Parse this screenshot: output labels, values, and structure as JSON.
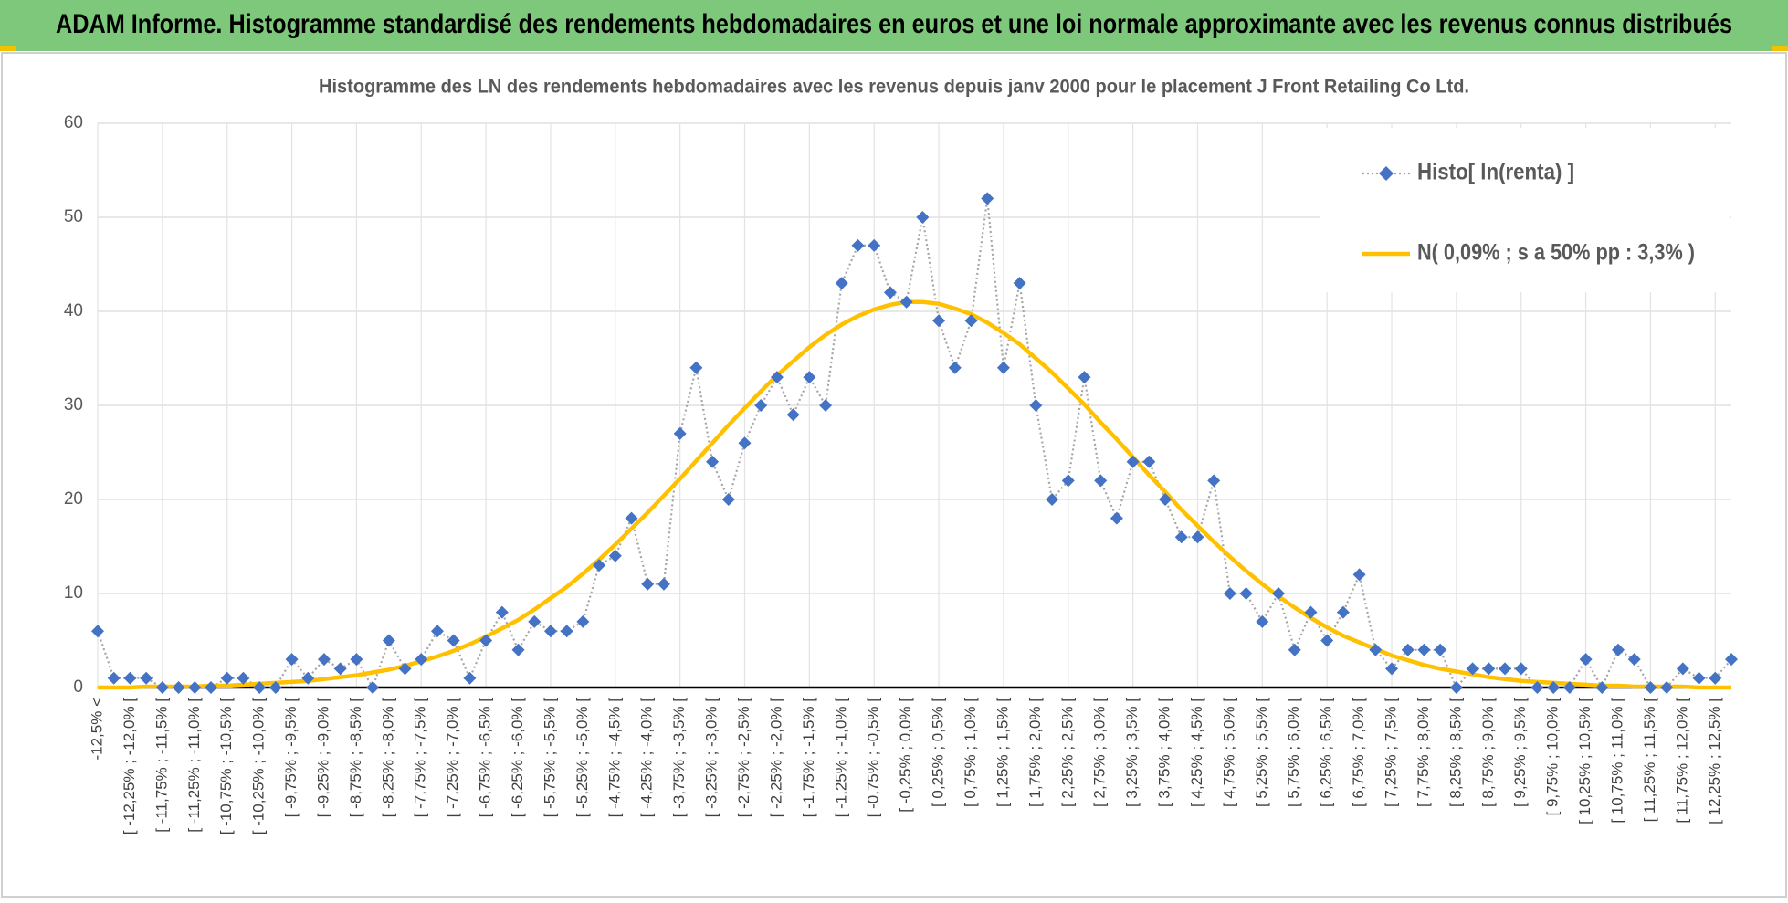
{
  "page_title": "ADAM Informe. Histogramme standardisé des rendements hebdomadaires en euros et une loi normale approximante avec les revenus connus distribués",
  "chart_data": {
    "type": "line",
    "title": "Histogramme des LN des rendements hebdomadaires avec les revenus depuis janv 2000 pour le placement J Front Retailing Co Ltd.",
    "categories": [
      "-12,5% <",
      null,
      "[ -12,25% ; -12,0% [",
      null,
      "[ -11,75% ; -11,5% [",
      null,
      "[ -11,25% ; -11,0% [",
      null,
      "[ -10,75% ; -10,5% [",
      null,
      "[ -10,25% ; -10,0% [",
      null,
      "[ -9,75% ; -9,5% [",
      null,
      "[ -9,25% ; -9,0% [",
      null,
      "[ -8,75% ; -8,5% [",
      null,
      "[ -8,25% ; -8,0% [",
      null,
      "[ -7,75% ; -7,5% [",
      null,
      "[ -7,25% ; -7,0% [",
      null,
      "[ -6,75% ; -6,5% [",
      null,
      "[ -6,25% ; -6,0% [",
      null,
      "[ -5,75% ; -5,5% [",
      null,
      "[ -5,25% ; -5,0% [",
      null,
      "[ -4,75% ; -4,5% [",
      null,
      "[ -4,25% ; -4,0% [",
      null,
      "[ -3,75% ; -3,5% [",
      null,
      "[ -3,25% ; -3,0% [",
      null,
      "[ -2,75% ; -2,5% [",
      null,
      "[ -2,25% ; -2,0% [",
      null,
      "[ -1,75% ; -1,5% [",
      null,
      "[ -1,25% ; -1,0% [",
      null,
      "[ -0,75% ; -0,5% [",
      null,
      "[ -0,25% ; 0,0% [",
      null,
      "[ 0,25% ; 0,5% [",
      null,
      "[ 0,75% ; 1,0% [",
      null,
      "[ 1,25% ; 1,5% [",
      null,
      "[ 1,75% ; 2,0% [",
      null,
      "[ 2,25% ; 2,5% [",
      null,
      "[ 2,75% ; 3,0% [",
      null,
      "[ 3,25% ; 3,5% [",
      null,
      "[ 3,75% ; 4,0% [",
      null,
      "[ 4,25% ; 4,5% [",
      null,
      "[ 4,75% ; 5,0% [",
      null,
      "[ 5,25% ; 5,5% [",
      null,
      "[ 5,75% ; 6,0% [",
      null,
      "[ 6,25% ; 6,5% [",
      null,
      "[ 6,75% ; 7,0% [",
      null,
      "[ 7,25% ; 7,5% [",
      null,
      "[ 7,75% ; 8,0% [",
      null,
      "[ 8,25% ; 8,5% [",
      null,
      "[ 8,75% ; 9,0% [",
      null,
      "[ 9,25% ; 9,5% [",
      null,
      "[ 9,75% ; 10,0% [",
      null,
      "[ 10,25% ; 10,5% [",
      null,
      "[ 10,75% ; 11,0% [",
      null,
      "[ 11,25% ; 11,5% [",
      null,
      "[ 11,75% ; 12,0% [",
      null,
      "[ 12,25% ; 12,5% [",
      null
    ],
    "series": [
      {
        "name": "Histo[ ln(renta) ]",
        "color": "#4472c4",
        "line_color": "#a6a6a6",
        "values": [
          6,
          1,
          1,
          1,
          0,
          0,
          0,
          0,
          1,
          1,
          0,
          0,
          3,
          1,
          3,
          2,
          3,
          0,
          5,
          2,
          3,
          6,
          5,
          1,
          5,
          8,
          4,
          7,
          6,
          6,
          7,
          13,
          14,
          18,
          11,
          11,
          27,
          34,
          24,
          20,
          26,
          30,
          33,
          29,
          33,
          30,
          43,
          47,
          47,
          42,
          41,
          50,
          39,
          34,
          39,
          52,
          34,
          43,
          30,
          20,
          22,
          33,
          22,
          18,
          24,
          24,
          20,
          16,
          16,
          22,
          10,
          10,
          7,
          10,
          4,
          8,
          5,
          8,
          12,
          4,
          2,
          4,
          4,
          4,
          0,
          2,
          2,
          2,
          2,
          0,
          0,
          0,
          3,
          0,
          4,
          3,
          0,
          0,
          2,
          1,
          1,
          3
        ]
      },
      {
        "name": "N( 0,09% ; s a 50% pp : 3,3% )",
        "color": "#ffc000",
        "values": [
          0.0,
          0.0,
          0.0,
          0.1,
          0.1,
          0.1,
          0.1,
          0.2,
          0.2,
          0.3,
          0.4,
          0.5,
          0.6,
          0.7,
          0.9,
          1.1,
          1.3,
          1.6,
          1.9,
          2.3,
          2.8,
          3.3,
          3.9,
          4.6,
          5.4,
          6.3,
          7.2,
          8.3,
          9.5,
          10.7,
          12.1,
          13.6,
          15.2,
          16.9,
          18.6,
          20.4,
          22.2,
          24.1,
          26.0,
          27.9,
          29.7,
          31.5,
          33.2,
          34.7,
          36.2,
          37.5,
          38.6,
          39.5,
          40.2,
          40.7,
          41.0,
          41.0,
          40.8,
          40.3,
          39.7,
          38.8,
          37.7,
          36.5,
          35.0,
          33.5,
          31.8,
          30.1,
          28.2,
          26.4,
          24.5,
          22.6,
          20.8,
          18.9,
          17.2,
          15.5,
          13.9,
          12.4,
          11.0,
          9.7,
          8.5,
          7.4,
          6.4,
          5.5,
          4.8,
          4.1,
          3.4,
          2.9,
          2.4,
          2.0,
          1.7,
          1.4,
          1.1,
          0.9,
          0.7,
          0.6,
          0.5,
          0.4,
          0.3,
          0.2,
          0.2,
          0.1,
          0.1,
          0.1,
          0.1,
          0.0,
          0.0,
          0.0
        ]
      }
    ],
    "ylim": [
      0,
      60
    ],
    "yticks": [
      0,
      10,
      20,
      30,
      40,
      50,
      60
    ],
    "grid": true,
    "legend": "top-right"
  }
}
